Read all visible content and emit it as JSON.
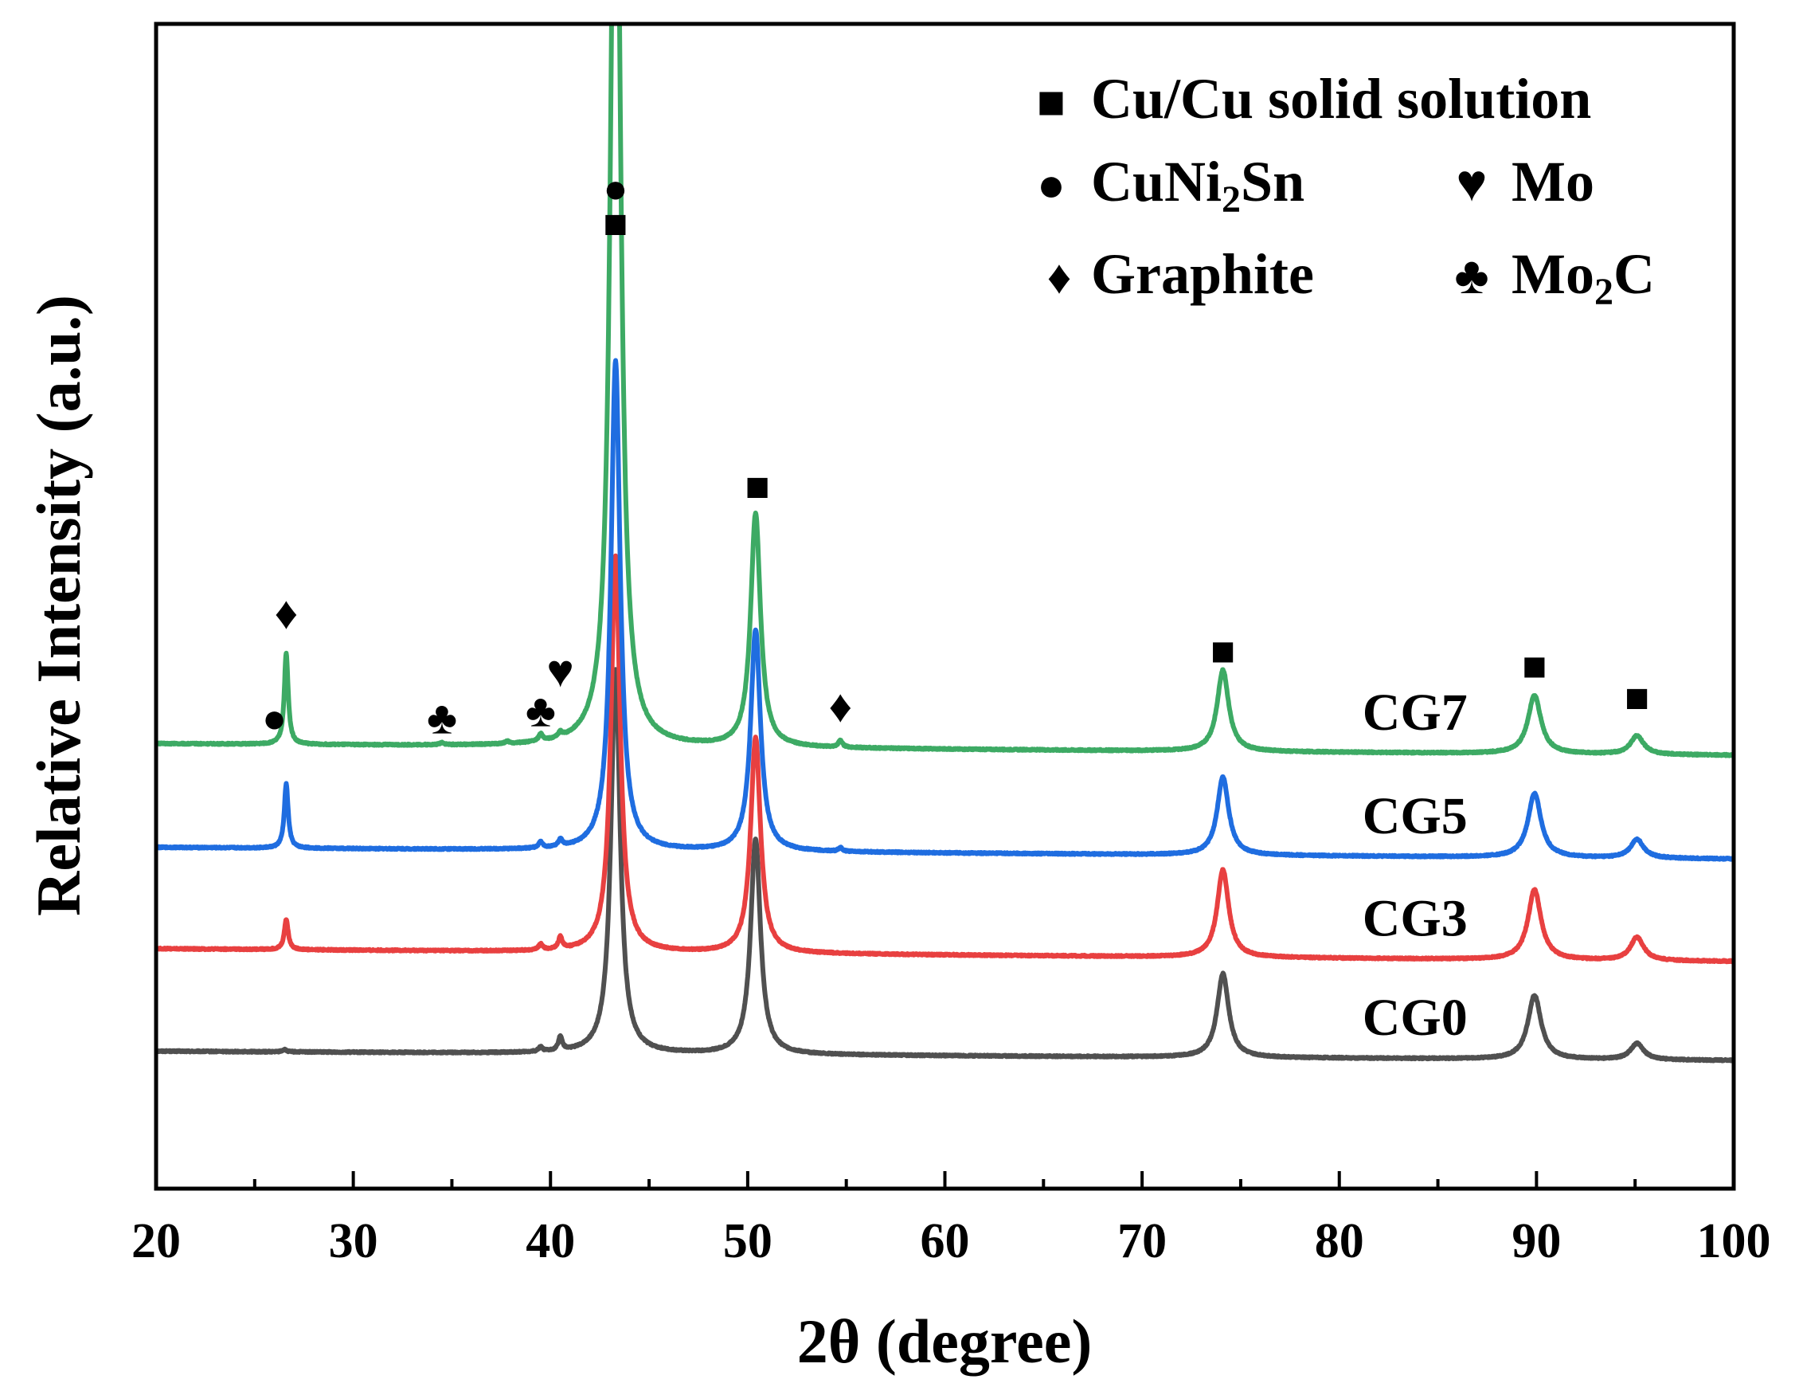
{
  "chart_data": {
    "type": "line",
    "title": "",
    "xlabel": "2θ (degree)",
    "ylabel": "Relative Intensity (a.u.)",
    "xlim": [
      20,
      100
    ],
    "ylim": [
      0,
      10
    ],
    "xticks": [
      "20",
      "30",
      "40",
      "50",
      "60",
      "70",
      "80",
      "90",
      "100"
    ],
    "grid": false,
    "legend": {
      "position": "top-right",
      "entries": [
        {
          "symbol": "■",
          "label": "Cu/Cu solid solution"
        },
        {
          "symbol": "●",
          "label": "CuNi",
          "subscript": "2",
          "label_after": "Sn"
        },
        {
          "symbol": "♥",
          "label": "Mo"
        },
        {
          "symbol": "♦",
          "label": "Graphite"
        },
        {
          "symbol": "♣",
          "label": "Mo",
          "subscript": "2",
          "label_after": "C"
        }
      ]
    },
    "series": [
      {
        "name": "CG0",
        "color": "#505050",
        "baseline": 1.18,
        "baseline_end": 1.1,
        "peaks": [
          {
            "x": 26.5,
            "h": 0.02,
            "w": 0.12
          },
          {
            "x": 39.5,
            "h": 0.04,
            "w": 0.12
          },
          {
            "x": 40.5,
            "h": 0.12,
            "w": 0.12
          },
          {
            "x": 43.3,
            "h": 3.3,
            "w": 0.28
          },
          {
            "x": 50.4,
            "h": 1.85,
            "w": 0.3
          },
          {
            "x": 74.1,
            "h": 0.72,
            "w": 0.35
          },
          {
            "x": 89.9,
            "h": 0.55,
            "w": 0.4
          },
          {
            "x": 95.1,
            "h": 0.14,
            "w": 0.4
          }
        ]
      },
      {
        "name": "CG3",
        "color": "#e84040",
        "baseline": 2.06,
        "baseline_end": 1.95,
        "peaks": [
          {
            "x": 26.6,
            "h": 0.26,
            "w": 0.12
          },
          {
            "x": 39.5,
            "h": 0.05,
            "w": 0.12
          },
          {
            "x": 40.5,
            "h": 0.1,
            "w": 0.12
          },
          {
            "x": 43.3,
            "h": 3.4,
            "w": 0.28
          },
          {
            "x": 50.4,
            "h": 1.85,
            "w": 0.3
          },
          {
            "x": 74.1,
            "h": 0.75,
            "w": 0.35
          },
          {
            "x": 89.9,
            "h": 0.6,
            "w": 0.4
          },
          {
            "x": 95.1,
            "h": 0.2,
            "w": 0.4
          }
        ]
      },
      {
        "name": "CG5",
        "color": "#1f6de0",
        "baseline": 2.93,
        "baseline_end": 2.83,
        "peaks": [
          {
            "x": 26.6,
            "h": 0.55,
            "w": 0.12
          },
          {
            "x": 39.5,
            "h": 0.05,
            "w": 0.12
          },
          {
            "x": 40.5,
            "h": 0.06,
            "w": 0.12
          },
          {
            "x": 43.3,
            "h": 4.2,
            "w": 0.28
          },
          {
            "x": 50.4,
            "h": 1.9,
            "w": 0.3
          },
          {
            "x": 54.7,
            "h": 0.03,
            "w": 0.12
          },
          {
            "x": 74.1,
            "h": 0.67,
            "w": 0.35
          },
          {
            "x": 89.9,
            "h": 0.55,
            "w": 0.4
          },
          {
            "x": 95.1,
            "h": 0.16,
            "w": 0.4
          }
        ]
      },
      {
        "name": "CG7",
        "color": "#3daa64",
        "baseline": 3.82,
        "baseline_end": 3.72,
        "peaks": [
          {
            "x": 26.6,
            "h": 0.78,
            "w": 0.12
          },
          {
            "x": 34.5,
            "h": 0.02,
            "w": 0.12
          },
          {
            "x": 37.8,
            "h": 0.02,
            "w": 0.12
          },
          {
            "x": 39.5,
            "h": 0.06,
            "w": 0.12
          },
          {
            "x": 40.5,
            "h": 0.04,
            "w": 0.12
          },
          {
            "x": 43.3,
            "h": 9.5,
            "w": 0.28
          },
          {
            "x": 50.4,
            "h": 2.0,
            "w": 0.3
          },
          {
            "x": 54.7,
            "h": 0.06,
            "w": 0.12
          },
          {
            "x": 74.1,
            "h": 0.7,
            "w": 0.35
          },
          {
            "x": 89.9,
            "h": 0.5,
            "w": 0.4
          },
          {
            "x": 95.1,
            "h": 0.16,
            "w": 0.4
          }
        ]
      }
    ],
    "annotations": [
      {
        "symbol": "♦",
        "x": 26.6,
        "y": 4.9
      },
      {
        "symbol": "●",
        "x": 26.0,
        "y": 4.0
      },
      {
        "symbol": "♣",
        "x": 34.5,
        "y": 4.0
      },
      {
        "symbol": "♣",
        "x": 39.5,
        "y": 4.06
      },
      {
        "symbol": "♥",
        "x": 40.5,
        "y": 4.4
      },
      {
        "symbol": "●",
        "x": 43.3,
        "y": 8.55
      },
      {
        "symbol": "■",
        "x": 43.3,
        "y": 8.25
      },
      {
        "symbol": "■",
        "x": 50.5,
        "y": 5.99
      },
      {
        "symbol": "♦",
        "x": 54.7,
        "y": 4.1
      },
      {
        "symbol": "■",
        "x": 74.1,
        "y": 4.58
      },
      {
        "symbol": "■",
        "x": 89.9,
        "y": 4.45
      },
      {
        "symbol": "■",
        "x": 95.1,
        "y": 4.18
      }
    ]
  }
}
